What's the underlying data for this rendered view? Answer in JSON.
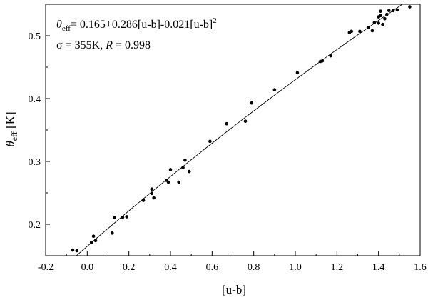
{
  "chart_data": {
    "type": "scatter",
    "title": "",
    "xlabel": "[u-b]",
    "ylabel_main": "θ",
    "ylabel_sub": "eff",
    "ylabel_unit": " [K]",
    "xlim": [
      -0.2,
      1.6
    ],
    "ylim": [
      0.15,
      0.55
    ],
    "xticks": [
      -0.2,
      0.0,
      0.2,
      0.4,
      0.6,
      0.8,
      1.0,
      1.2,
      1.4,
      1.6
    ],
    "xtick_labels": [
      "-0.2",
      "0.0",
      "0.2",
      "0.4",
      "0.6",
      "0.8",
      "1.0",
      "1.2",
      "1.4",
      "1.6"
    ],
    "yticks": [
      0.2,
      0.3,
      0.4,
      0.5
    ],
    "ytick_labels": [
      "0.2",
      "0.3",
      "0.4",
      "0.5"
    ],
    "grid": false,
    "annotation": {
      "line1_theta": "θ",
      "line1_sub": "eff",
      "line1_eq": "= 0.165+0.286[u-b]-0.021[u-b]",
      "line1_sup": "2",
      "line2_sigma": "σ = 355K, ",
      "line2_R": "R",
      "line2_val": " = 0.998"
    },
    "fit": {
      "c0": 0.165,
      "c1": 0.286,
      "c2": -0.021
    },
    "points": [
      {
        "x": -0.07,
        "y": 0.159
      },
      {
        "x": -0.05,
        "y": 0.158
      },
      {
        "x": 0.02,
        "y": 0.171
      },
      {
        "x": 0.03,
        "y": 0.181
      },
      {
        "x": 0.04,
        "y": 0.174
      },
      {
        "x": 0.12,
        "y": 0.186
      },
      {
        "x": 0.13,
        "y": 0.211
      },
      {
        "x": 0.17,
        "y": 0.211
      },
      {
        "x": 0.19,
        "y": 0.212
      },
      {
        "x": 0.27,
        "y": 0.238
      },
      {
        "x": 0.31,
        "y": 0.256
      },
      {
        "x": 0.31,
        "y": 0.249
      },
      {
        "x": 0.32,
        "y": 0.242
      },
      {
        "x": 0.38,
        "y": 0.27
      },
      {
        "x": 0.39,
        "y": 0.267
      },
      {
        "x": 0.4,
        "y": 0.287
      },
      {
        "x": 0.44,
        "y": 0.267
      },
      {
        "x": 0.46,
        "y": 0.29
      },
      {
        "x": 0.47,
        "y": 0.302
      },
      {
        "x": 0.49,
        "y": 0.284
      },
      {
        "x": 0.59,
        "y": 0.332
      },
      {
        "x": 0.67,
        "y": 0.36
      },
      {
        "x": 0.76,
        "y": 0.364
      },
      {
        "x": 0.79,
        "y": 0.393
      },
      {
        "x": 0.9,
        "y": 0.414
      },
      {
        "x": 1.01,
        "y": 0.441
      },
      {
        "x": 1.12,
        "y": 0.459
      },
      {
        "x": 1.13,
        "y": 0.46
      },
      {
        "x": 1.17,
        "y": 0.468
      },
      {
        "x": 1.26,
        "y": 0.505
      },
      {
        "x": 1.27,
        "y": 0.507
      },
      {
        "x": 1.31,
        "y": 0.507
      },
      {
        "x": 1.35,
        "y": 0.513
      },
      {
        "x": 1.37,
        "y": 0.508
      },
      {
        "x": 1.38,
        "y": 0.521
      },
      {
        "x": 1.4,
        "y": 0.53
      },
      {
        "x": 1.4,
        "y": 0.52
      },
      {
        "x": 1.41,
        "y": 0.532
      },
      {
        "x": 1.41,
        "y": 0.539
      },
      {
        "x": 1.42,
        "y": 0.518
      },
      {
        "x": 1.43,
        "y": 0.527
      },
      {
        "x": 1.44,
        "y": 0.534
      },
      {
        "x": 1.45,
        "y": 0.54
      },
      {
        "x": 1.47,
        "y": 0.54
      },
      {
        "x": 1.49,
        "y": 0.541
      },
      {
        "x": 1.55,
        "y": 0.546
      }
    ]
  }
}
